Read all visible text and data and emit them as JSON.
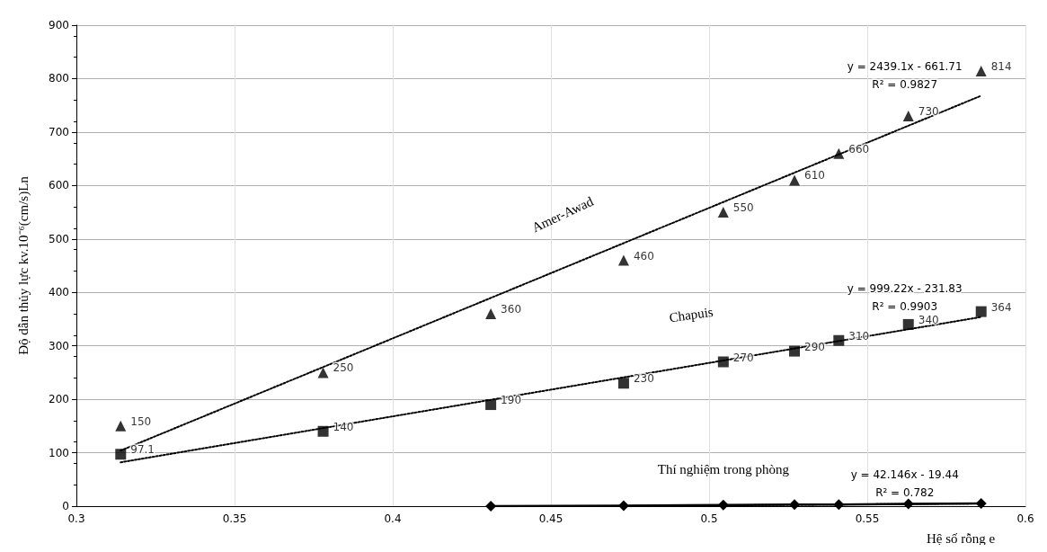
{
  "chart_data": {
    "type": "scatter",
    "xlabel": "Hệ số rỗng e",
    "ylabel": "Độ dẫn thủy lực kv.10⁻⁶(cm/s)Ln",
    "xlim": [
      0.3,
      0.6
    ],
    "xticks": [
      0.3,
      0.35,
      0.4,
      0.45,
      0.5,
      0.55,
      0.6
    ],
    "ylim": [
      0,
      900
    ],
    "yticks": [
      0,
      100,
      200,
      300,
      400,
      500,
      600,
      700,
      800,
      900
    ],
    "grid": true,
    "legend": false,
    "series": [
      {
        "name": "Amer-Awad",
        "color": "#000000",
        "marker": "triangle",
        "x": [
          0.314,
          0.378,
          0.431,
          0.473,
          0.5045,
          0.527,
          0.541,
          0.563,
          0.586
        ],
        "values": [
          150,
          250,
          360,
          460,
          550,
          610,
          660,
          730,
          814
        ],
        "value_labels": [
          "150",
          "250",
          "360",
          "460",
          "550",
          "610",
          "660",
          "730",
          "814"
        ]
      },
      {
        "name": "Chapuis",
        "color": "#000000",
        "marker": "square",
        "x": [
          0.314,
          0.378,
          0.431,
          0.473,
          0.5045,
          0.527,
          0.541,
          0.563,
          0.586
        ],
        "values": [
          97.1,
          140,
          190,
          230,
          270,
          290,
          310,
          340,
          364
        ],
        "value_labels": [
          "97.1",
          "140",
          "190",
          "230",
          "270",
          "290",
          "310",
          "340",
          "364"
        ]
      },
      {
        "type": "line",
        "name": "Thí nghiệm trong phòng",
        "color": "#000000",
        "marker": "diamond",
        "line_style": "solid",
        "x": [
          0.431,
          0.473,
          0.5045,
          0.527,
          0.541,
          0.563,
          0.586
        ],
        "values": [
          0,
          1,
          2,
          3,
          3,
          4,
          5
        ]
      },
      {
        "type": "line",
        "color": "#000000",
        "marker": "none",
        "line_style": "dotted",
        "x": [
          0.314,
          0.586
        ],
        "values": [
          104,
          768
        ]
      },
      {
        "type": "line",
        "color": "#000000",
        "marker": "none",
        "line_style": "dotted",
        "x": [
          0.314,
          0.586
        ],
        "values": [
          82,
          354
        ]
      },
      {
        "type": "line",
        "color": "#000000",
        "marker": "none",
        "line_style": "dotted",
        "x": [
          0.47,
          0.586
        ],
        "values": [
          0,
          5
        ]
      }
    ],
    "annotations": [
      "y = 2439.1x - 661.71",
      "R² = 0.9827",
      "y = 999.22x - 231.83",
      "R² = 0.9903",
      "y = 42.146x - 19.44",
      "R² = 0.782"
    ]
  }
}
